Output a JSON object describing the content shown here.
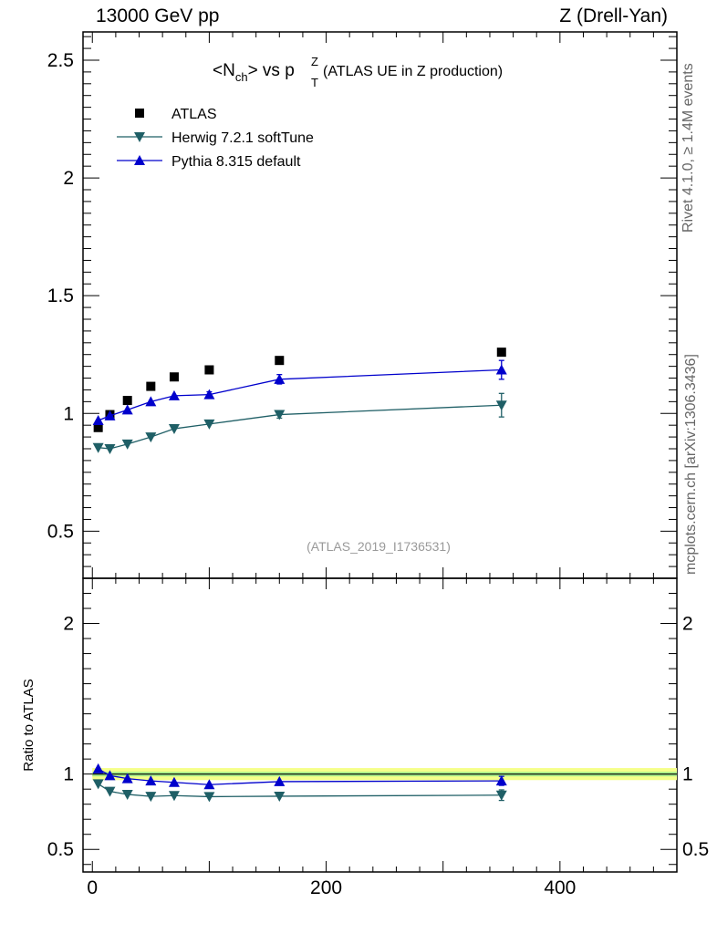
{
  "header": {
    "left": "13000 GeV pp",
    "right": "Z (Drell-Yan)"
  },
  "side_labels": {
    "rivet": "Rivet 4.1.0, ≥ 1.4M events",
    "mcplots": "mcplots.cern.ch [arXiv:1306.3436]"
  },
  "chart_data": {
    "type": "line",
    "title": {
      "main": "<N",
      "sub": "ch",
      "mid": "> vs p",
      "supsub_top": "Z",
      "supsub_bot": "T",
      "suffix": " (ATLAS UE in Z production)"
    },
    "analysis_id": "(ATLAS_2019_I1736531)",
    "xlim": [
      -8,
      500
    ],
    "ylim": [
      0.3,
      2.62
    ],
    "xticks": [
      0,
      200,
      400
    ],
    "yticks": [
      0.5,
      1,
      1.5,
      2,
      2.5
    ],
    "legend_position": "top-left",
    "series": [
      {
        "name": "ATLAS",
        "marker": "square",
        "color": "#000000",
        "x": [
          5,
          15,
          30,
          50,
          70,
          100,
          160,
          350
        ],
        "y": [
          0.94,
          0.995,
          1.055,
          1.115,
          1.155,
          1.185,
          1.225,
          1.26
        ],
        "err": [
          0.005,
          0.005,
          0.005,
          0.005,
          0.005,
          0.005,
          0.01,
          0.01
        ]
      },
      {
        "name": "Herwig 7.2.1 softTune",
        "marker": "triangle-down",
        "color": "#1f5f66",
        "x": [
          5,
          15,
          30,
          50,
          70,
          100,
          160,
          350
        ],
        "y": [
          0.855,
          0.85,
          0.87,
          0.9,
          0.935,
          0.955,
          0.995,
          1.035
        ],
        "err": [
          0.006,
          0.006,
          0.006,
          0.006,
          0.006,
          0.008,
          0.015,
          0.05
        ]
      },
      {
        "name": "Pythia 8.315 default",
        "marker": "triangle-up",
        "color": "#0000cc",
        "x": [
          5,
          15,
          30,
          50,
          70,
          100,
          160,
          350
        ],
        "y": [
          0.97,
          0.99,
          1.015,
          1.05,
          1.075,
          1.08,
          1.145,
          1.185
        ],
        "err": [
          0.006,
          0.006,
          0.006,
          0.008,
          0.01,
          0.012,
          0.02,
          0.04
        ]
      }
    ],
    "ratio": {
      "ylabel": "Ratio to ATLAS",
      "ylim": [
        0.35,
        2.3
      ],
      "yticks": [
        0.5,
        1,
        2
      ],
      "band_inner": [
        0.985,
        1.015
      ],
      "band_outer": [
        0.96,
        1.04
      ],
      "series": [
        {
          "name": "Herwig 7.2.1 softTune",
          "y": [
            0.935,
            0.885,
            0.865,
            0.852,
            0.857,
            0.85,
            0.853,
            0.86
          ],
          "err": [
            0.006,
            0.006,
            0.006,
            0.006,
            0.006,
            0.008,
            0.013,
            0.035
          ]
        },
        {
          "name": "Pythia 8.315 default",
          "y": [
            1.035,
            0.99,
            0.97,
            0.955,
            0.945,
            0.93,
            0.95,
            0.955
          ],
          "err": [
            0.006,
            0.006,
            0.006,
            0.006,
            0.008,
            0.01,
            0.015,
            0.03
          ]
        }
      ]
    }
  }
}
